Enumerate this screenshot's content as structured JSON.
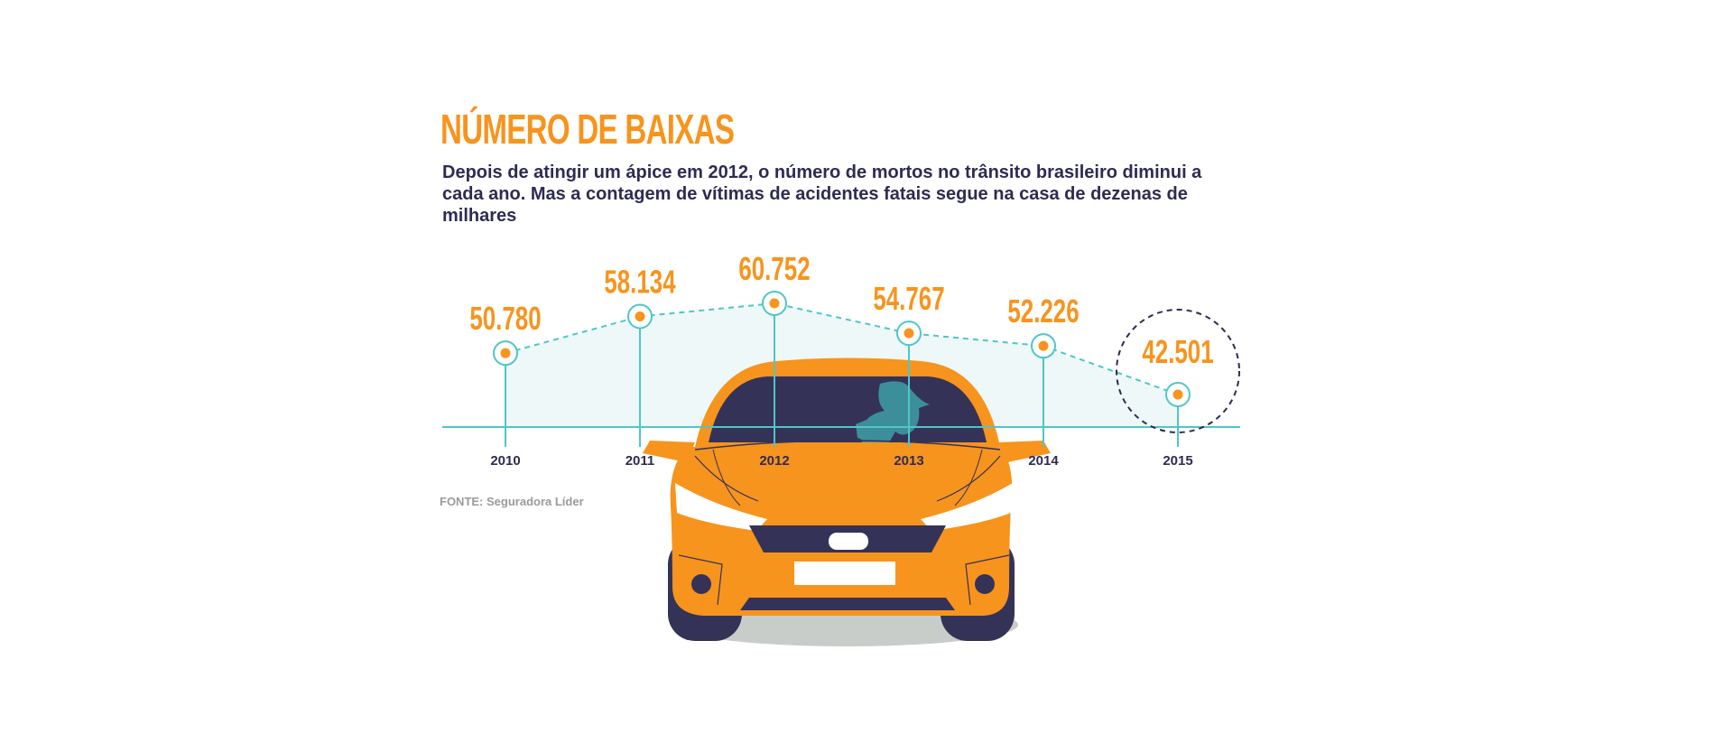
{
  "chart_data": {
    "type": "line",
    "title": "NÚMERO DE BAIXAS",
    "subtitle": "Depois de atingir um ápice em 2012, o número de mortos no trânsito brasileiro diminui a cada ano. Mas a contagem de vítimas de acidentes fatais segue na casa de dezenas de milhares",
    "categories": [
      "2010",
      "2011",
      "2012",
      "2013",
      "2014",
      "2015"
    ],
    "values": [
      50780,
      58134,
      60752,
      54767,
      52226,
      42501
    ],
    "labels": [
      "50.780",
      "58.134",
      "60.752",
      "54.767",
      "52.226",
      "42.501"
    ],
    "highlight": "2015",
    "source": "FONTE: Seguradora Líder",
    "grid": false
  },
  "colors": {
    "accent": "#f7941d",
    "text": "#2e2b53",
    "line": "#4fc6c8",
    "area": "#eef8f8",
    "car_body": "#f7941d",
    "car_dark": "#353258",
    "shadow": "#c9cdc9"
  }
}
